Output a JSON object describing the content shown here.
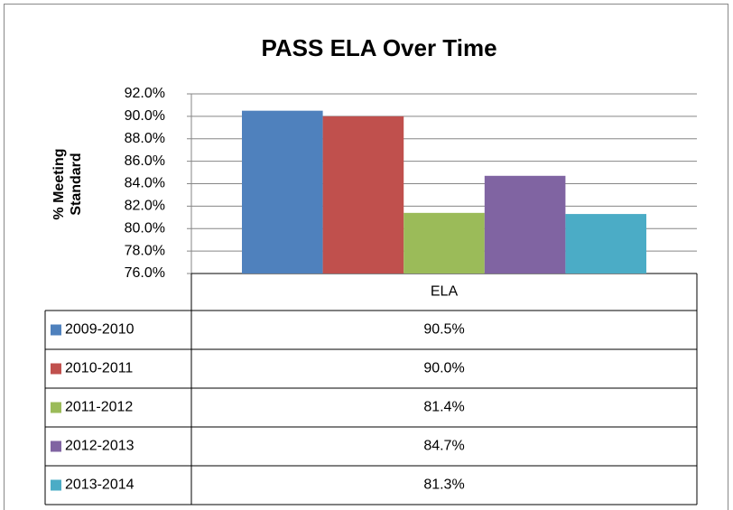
{
  "chart_data": {
    "type": "bar",
    "title": "PASS ELA Over Time",
    "y_label": "% Meeting Standard",
    "categories": [
      "ELA"
    ],
    "series": [
      {
        "name": "2009-2010",
        "color": "#4f81bd",
        "values": [
          90.5
        ],
        "value_labels": [
          "90.5%"
        ]
      },
      {
        "name": "2010-2011",
        "color": "#c0504d",
        "values": [
          90.0
        ],
        "value_labels": [
          "90.0%"
        ]
      },
      {
        "name": "2011-2012",
        "color": "#9bbb59",
        "values": [
          81.4
        ],
        "value_labels": [
          "81.4%"
        ]
      },
      {
        "name": "2012-2013",
        "color": "#8064a2",
        "values": [
          84.7
        ],
        "value_labels": [
          "84.7%"
        ]
      },
      {
        "name": "2013-2014",
        "color": "#4bacc6",
        "values": [
          81.3
        ],
        "value_labels": [
          "81.3%"
        ]
      }
    ],
    "ylim": [
      76,
      92
    ],
    "yticks": [
      {
        "value": 76,
        "label": "76.0%"
      },
      {
        "value": 78,
        "label": "78.0%"
      },
      {
        "value": 80,
        "label": "80.0%"
      },
      {
        "value": 82,
        "label": "82.0%"
      },
      {
        "value": 84,
        "label": "84.0%"
      },
      {
        "value": 86,
        "label": "86.0%"
      },
      {
        "value": 88,
        "label": "88.0%"
      },
      {
        "value": 90,
        "label": "90.0%"
      },
      {
        "value": 92,
        "label": "92.0%"
      }
    ],
    "grid": true
  }
}
